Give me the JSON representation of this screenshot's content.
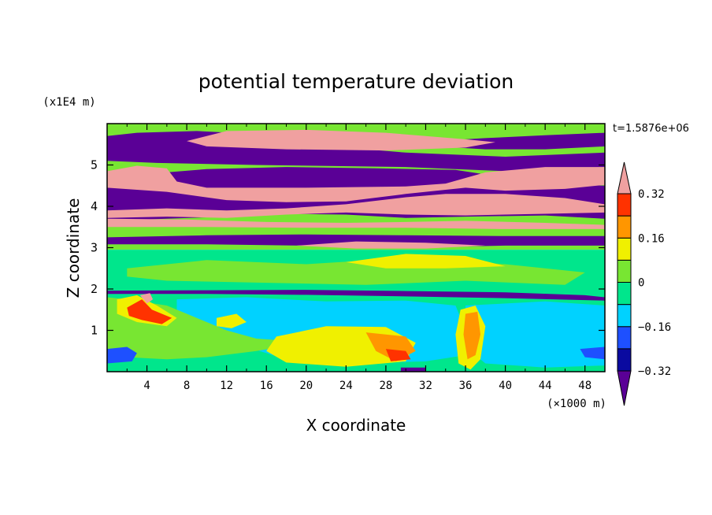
{
  "chart_data": {
    "type": "heatmap",
    "title": "potential temperature deviation",
    "time_label": "t=1.5876e+06",
    "xlabel": "X coordinate",
    "ylabel": "Z coordinate",
    "x_unit": "(×1000 m)",
    "y_unit": "(x1E4 m)",
    "xlim": [
      0,
      50
    ],
    "ylim": [
      0,
      6
    ],
    "x_ticks": [
      "4",
      "8",
      "12",
      "16",
      "20",
      "24",
      "28",
      "32",
      "36",
      "40",
      "44",
      "48"
    ],
    "y_ticks": [
      "1",
      "2",
      "3",
      "4",
      "5"
    ],
    "colorbar": {
      "levels": [
        -0.4,
        -0.32,
        -0.24,
        -0.16,
        -0.08,
        0,
        0.08,
        0.16,
        0.24,
        0.32,
        0.4
      ],
      "labels": [
        "0.32",
        "0.16",
        "0",
        "−0.16",
        "−0.32"
      ],
      "colors": [
        "#5a0096",
        "#0a0aa0",
        "#1e50ff",
        "#00d2ff",
        "#00e68c",
        "#78e632",
        "#f0f000",
        "#ff9600",
        "#ff3200",
        "#f0a0a0"
      ],
      "extend": "both"
    },
    "regions": [
      {
        "level": 5,
        "polygon": [
          [
            0,
            6
          ],
          [
            50,
            6
          ],
          [
            50,
            2.95
          ],
          [
            0,
            2.95
          ]
        ]
      },
      {
        "level": 0,
        "polygon": [
          [
            0,
            5.7
          ],
          [
            3,
            5.78
          ],
          [
            9,
            5.82
          ],
          [
            15,
            5.75
          ],
          [
            20,
            5.5
          ],
          [
            30,
            5.3
          ],
          [
            40,
            5.2
          ],
          [
            50,
            5.3
          ],
          [
            50,
            4.95
          ],
          [
            40,
            4.85
          ],
          [
            30,
            4.95
          ],
          [
            15,
            5.0
          ],
          [
            5,
            5.05
          ],
          [
            0,
            5.1
          ]
        ]
      },
      {
        "level": 0,
        "polygon": [
          [
            31,
            5.55
          ],
          [
            38,
            5.65
          ],
          [
            44,
            5.72
          ],
          [
            50,
            5.78
          ],
          [
            50,
            5.45
          ],
          [
            44,
            5.38
          ],
          [
            38,
            5.38
          ],
          [
            33,
            5.45
          ]
        ]
      },
      {
        "level": 9,
        "polygon": [
          [
            8,
            5.58
          ],
          [
            12,
            5.82
          ],
          [
            20,
            5.85
          ],
          [
            28,
            5.78
          ],
          [
            36,
            5.62
          ],
          [
            39,
            5.55
          ],
          [
            36,
            5.42
          ],
          [
            28,
            5.35
          ],
          [
            18,
            5.38
          ],
          [
            10,
            5.45
          ]
        ]
      },
      {
        "level": 0,
        "polygon": [
          [
            0,
            4.65
          ],
          [
            2,
            4.75
          ],
          [
            6,
            4.82
          ],
          [
            10,
            4.9
          ],
          [
            18,
            4.95
          ],
          [
            27,
            4.92
          ],
          [
            35,
            4.88
          ],
          [
            40,
            4.7
          ],
          [
            44,
            4.55
          ],
          [
            50,
            4.5
          ],
          [
            50,
            3.7
          ],
          [
            44,
            3.78
          ],
          [
            36,
            3.75
          ],
          [
            30,
            3.72
          ],
          [
            24,
            3.8
          ],
          [
            18,
            3.82
          ],
          [
            12,
            3.75
          ],
          [
            6,
            3.7
          ],
          [
            0,
            3.65
          ]
        ]
      },
      {
        "level": 9,
        "polygon": [
          [
            0,
            4.85
          ],
          [
            3,
            4.98
          ],
          [
            6,
            4.92
          ],
          [
            7,
            4.6
          ],
          [
            10,
            4.45
          ],
          [
            20,
            4.45
          ],
          [
            30,
            4.48
          ],
          [
            34,
            4.55
          ],
          [
            38,
            4.82
          ],
          [
            44,
            4.95
          ],
          [
            50,
            4.95
          ],
          [
            50,
            4.52
          ],
          [
            46,
            4.42
          ],
          [
            40,
            4.38
          ],
          [
            36,
            4.45
          ],
          [
            30,
            4.3
          ],
          [
            24,
            4.12
          ],
          [
            18,
            4.1
          ],
          [
            12,
            4.15
          ],
          [
            6,
            4.35
          ],
          [
            0,
            4.45
          ]
        ]
      },
      {
        "level": 9,
        "polygon": [
          [
            0,
            3.9
          ],
          [
            6,
            3.95
          ],
          [
            12,
            3.9
          ],
          [
            18,
            3.95
          ],
          [
            24,
            4.05
          ],
          [
            30,
            4.22
          ],
          [
            34,
            4.3
          ],
          [
            40,
            4.3
          ],
          [
            46,
            4.2
          ],
          [
            50,
            4.05
          ],
          [
            50,
            3.85
          ],
          [
            44,
            3.82
          ],
          [
            36,
            3.78
          ],
          [
            30,
            3.8
          ],
          [
            24,
            3.85
          ],
          [
            18,
            3.8
          ],
          [
            12,
            3.72
          ],
          [
            6,
            3.75
          ],
          [
            0,
            3.72
          ]
        ]
      },
      {
        "level": 9,
        "polygon": [
          [
            0,
            3.7
          ],
          [
            8,
            3.68
          ],
          [
            16,
            3.62
          ],
          [
            24,
            3.6
          ],
          [
            30,
            3.62
          ],
          [
            36,
            3.65
          ],
          [
            44,
            3.6
          ],
          [
            50,
            3.55
          ],
          [
            50,
            3.45
          ],
          [
            40,
            3.45
          ],
          [
            30,
            3.48
          ],
          [
            20,
            3.48
          ],
          [
            10,
            3.5
          ],
          [
            0,
            3.5
          ]
        ]
      },
      {
        "level": 0,
        "polygon": [
          [
            0,
            3.25
          ],
          [
            10,
            3.3
          ],
          [
            20,
            3.32
          ],
          [
            30,
            3.3
          ],
          [
            40,
            3.28
          ],
          [
            50,
            3.28
          ],
          [
            50,
            3.05
          ],
          [
            40,
            3.05
          ],
          [
            30,
            3.0
          ],
          [
            20,
            3.05
          ],
          [
            10,
            3.08
          ],
          [
            0,
            3.08
          ]
        ]
      },
      {
        "level": 9,
        "polygon": [
          [
            19,
            3.05
          ],
          [
            25,
            3.15
          ],
          [
            32,
            3.12
          ],
          [
            38,
            3.05
          ],
          [
            32,
            2.98
          ],
          [
            25,
            2.98
          ]
        ]
      },
      {
        "level": 4,
        "polygon": [
          [
            0,
            2.95
          ],
          [
            50,
            2.95
          ],
          [
            50,
            0
          ],
          [
            0,
            0
          ]
        ]
      },
      {
        "level": 5,
        "polygon": [
          [
            2,
            2.5
          ],
          [
            10,
            2.7
          ],
          [
            20,
            2.6
          ],
          [
            30,
            2.75
          ],
          [
            40,
            2.6
          ],
          [
            48,
            2.4
          ],
          [
            46,
            2.1
          ],
          [
            36,
            2.2
          ],
          [
            26,
            2.1
          ],
          [
            16,
            2.15
          ],
          [
            6,
            2.2
          ],
          [
            2,
            2.3
          ]
        ]
      },
      {
        "level": 6,
        "polygon": [
          [
            24,
            2.65
          ],
          [
            30,
            2.85
          ],
          [
            36,
            2.8
          ],
          [
            40,
            2.55
          ],
          [
            34,
            2.5
          ],
          [
            28,
            2.5
          ]
        ]
      },
      {
        "level": 0,
        "polygon": [
          [
            0,
            1.96
          ],
          [
            10,
            1.97
          ],
          [
            20,
            1.98
          ],
          [
            30,
            1.95
          ],
          [
            40,
            1.92
          ],
          [
            48,
            1.85
          ],
          [
            50,
            1.8
          ],
          [
            50,
            1.72
          ],
          [
            40,
            1.78
          ],
          [
            30,
            1.82
          ],
          [
            20,
            1.86
          ],
          [
            10,
            1.88
          ],
          [
            0,
            1.88
          ]
        ]
      },
      {
        "level": 3,
        "polygon": [
          [
            7,
            1.75
          ],
          [
            14,
            1.8
          ],
          [
            22,
            1.7
          ],
          [
            30,
            1.72
          ],
          [
            35,
            1.6
          ],
          [
            36,
            1.0
          ],
          [
            36,
            0.4
          ],
          [
            32,
            0.25
          ],
          [
            24,
            0.2
          ],
          [
            18,
            0.3
          ],
          [
            14,
            0.6
          ],
          [
            10,
            1.0
          ],
          [
            7,
            1.4
          ]
        ]
      },
      {
        "level": 3,
        "polygon": [
          [
            36,
            1.6
          ],
          [
            44,
            1.7
          ],
          [
            50,
            1.6
          ],
          [
            50,
            0.15
          ],
          [
            44,
            0.1
          ],
          [
            38,
            0.2
          ],
          [
            36,
            0.6
          ]
        ]
      },
      {
        "level": 5,
        "polygon": [
          [
            0,
            1.8
          ],
          [
            2,
            1.75
          ],
          [
            6,
            1.6
          ],
          [
            9,
            1.3
          ],
          [
            12,
            1.0
          ],
          [
            15,
            0.8
          ],
          [
            18,
            0.75
          ],
          [
            20,
            0.7
          ],
          [
            15,
            0.5
          ],
          [
            10,
            0.35
          ],
          [
            6,
            0.3
          ],
          [
            2,
            0.35
          ],
          [
            0,
            0.4
          ]
        ]
      },
      {
        "level": 6,
        "polygon": [
          [
            17,
            0.85
          ],
          [
            22,
            1.1
          ],
          [
            28,
            1.08
          ],
          [
            31,
            0.7
          ],
          [
            30,
            0.25
          ],
          [
            24,
            0.12
          ],
          [
            18,
            0.22
          ],
          [
            16,
            0.5
          ]
        ]
      },
      {
        "level": 7,
        "polygon": [
          [
            26,
            0.95
          ],
          [
            30,
            0.85
          ],
          [
            31,
            0.5
          ],
          [
            29,
            0.25
          ],
          [
            27,
            0.5
          ]
        ]
      },
      {
        "level": 8,
        "polygon": [
          [
            28,
            0.55
          ],
          [
            30,
            0.5
          ],
          [
            30.5,
            0.3
          ],
          [
            28.5,
            0.25
          ]
        ]
      },
      {
        "level": 6,
        "polygon": [
          [
            35.5,
            1.5
          ],
          [
            37,
            1.6
          ],
          [
            38,
            1.1
          ],
          [
            37.5,
            0.3
          ],
          [
            36.5,
            0.05
          ],
          [
            35.3,
            0.2
          ],
          [
            35,
            0.9
          ]
        ]
      },
      {
        "level": 7,
        "polygon": [
          [
            36,
            1.4
          ],
          [
            37.2,
            1.45
          ],
          [
            37.5,
            0.9
          ],
          [
            37,
            0.4
          ],
          [
            36.2,
            0.3
          ],
          [
            35.8,
            0.9
          ]
        ]
      },
      {
        "level": 6,
        "polygon": [
          [
            1,
            1.75
          ],
          [
            3,
            1.85
          ],
          [
            5,
            1.6
          ],
          [
            7,
            1.3
          ],
          [
            6,
            1.1
          ],
          [
            3,
            1.2
          ],
          [
            1,
            1.4
          ]
        ]
      },
      {
        "level": 8,
        "polygon": [
          [
            2,
            1.55
          ],
          [
            3.5,
            1.75
          ],
          [
            4.5,
            1.5
          ],
          [
            6.5,
            1.3
          ],
          [
            5.5,
            1.15
          ],
          [
            3.5,
            1.25
          ],
          [
            2.2,
            1.35
          ]
        ]
      },
      {
        "level": 9,
        "polygon": [
          [
            3.3,
            1.85
          ],
          [
            4.3,
            1.9
          ],
          [
            4.6,
            1.75
          ],
          [
            4,
            1.65
          ]
        ]
      },
      {
        "level": 2,
        "polygon": [
          [
            0,
            0.55
          ],
          [
            2,
            0.6
          ],
          [
            3,
            0.45
          ],
          [
            2.5,
            0.25
          ],
          [
            0,
            0.2
          ]
        ]
      },
      {
        "level": 2,
        "polygon": [
          [
            47.5,
            0.55
          ],
          [
            50,
            0.6
          ],
          [
            50,
            0.3
          ],
          [
            48,
            0.35
          ]
        ]
      },
      {
        "level": 6,
        "polygon": [
          [
            11,
            1.3
          ],
          [
            13,
            1.4
          ],
          [
            14,
            1.2
          ],
          [
            12.5,
            1.05
          ],
          [
            11,
            1.1
          ]
        ]
      },
      {
        "level": 0,
        "polygon": [
          [
            29.5,
            0.1
          ],
          [
            32,
            0.1
          ],
          [
            32,
            0
          ],
          [
            29.5,
            0
          ]
        ]
      }
    ]
  }
}
